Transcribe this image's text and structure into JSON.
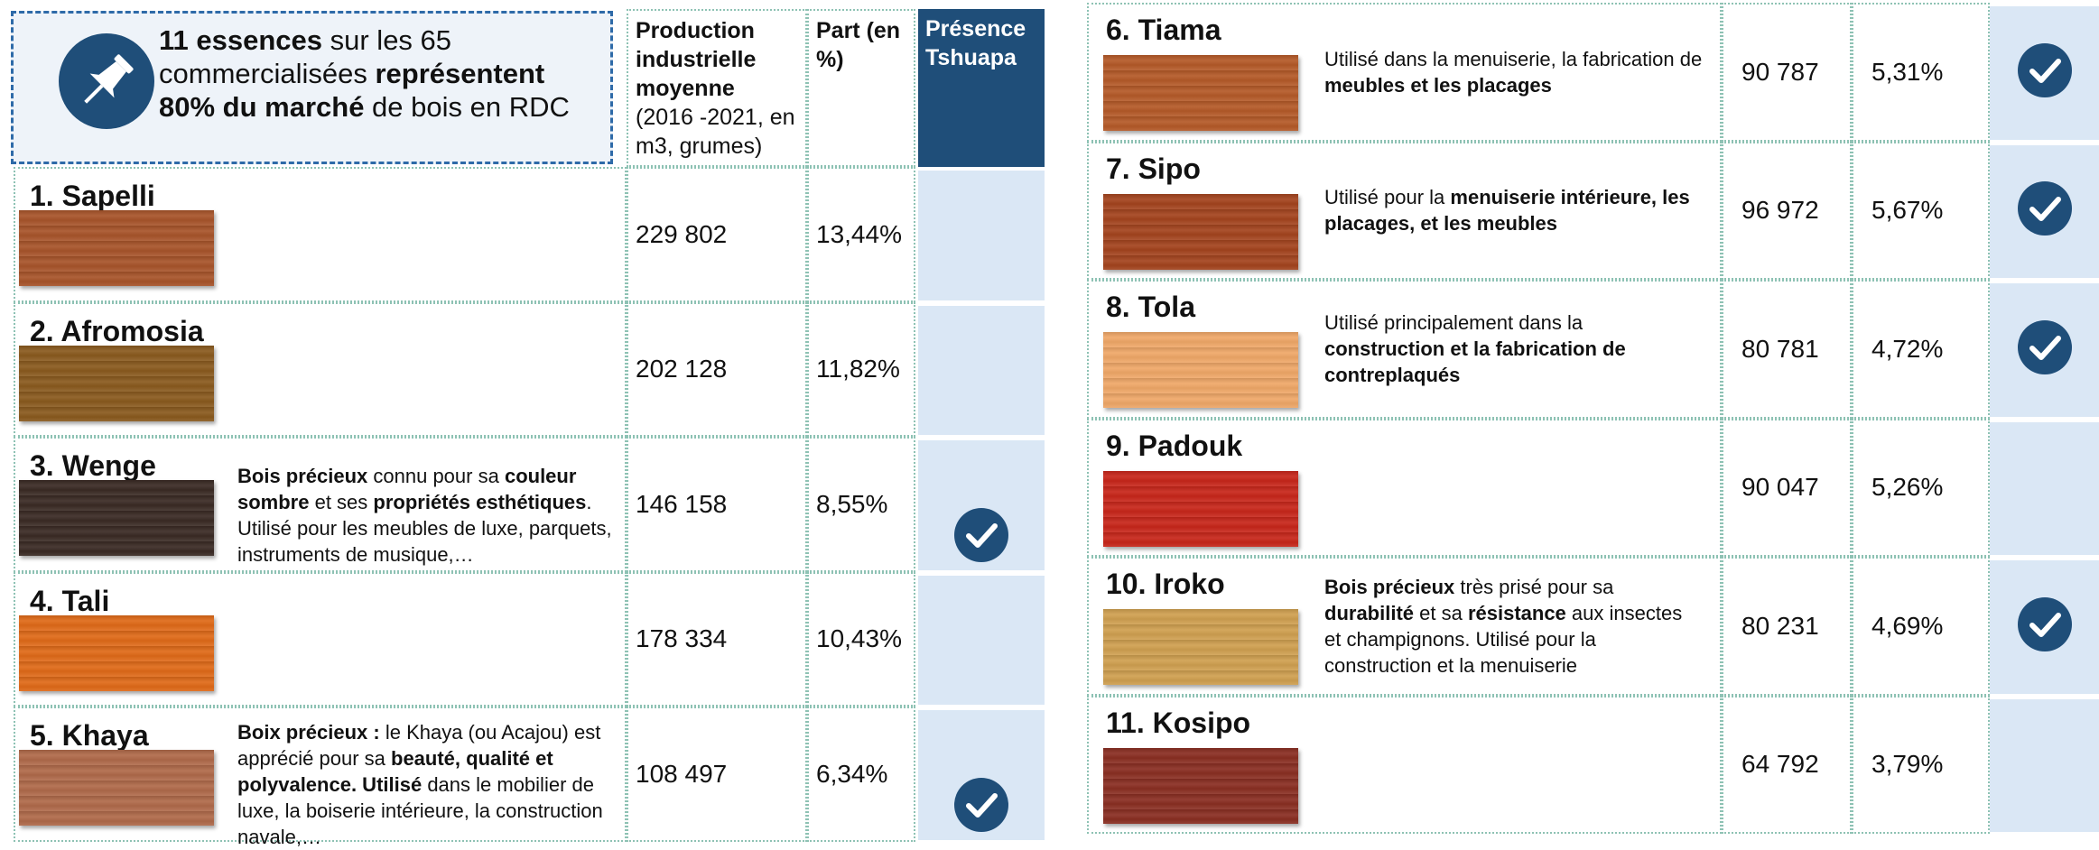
{
  "header": {
    "callout": [
      {
        "text": "11 essences",
        "bold": true
      },
      {
        "text": " sur les 65 commercialisées ",
        "bold": false
      },
      {
        "text": "représentent 80% du marché",
        "bold": true
      },
      {
        "text": " de bois en RDC",
        "bold": false
      }
    ],
    "production": [
      {
        "text": "Production industrielle moyenne",
        "bold": true
      },
      {
        "text": "(2016 -2021, en m3, grumes)",
        "bold": false
      }
    ],
    "share": [
      {
        "text": "Part (en %)",
        "bold": true
      }
    ],
    "presence": [
      {
        "text": "Présence Tshuapa",
        "bold": true
      }
    ]
  },
  "rows": [
    {
      "name": "1. Sapelli",
      "color": "#a8542a",
      "production": "229 802",
      "share": "13,44%",
      "presence": false,
      "description": []
    },
    {
      "name": "2. Afromosia",
      "color": "#8a5a1e",
      "production": "202 128",
      "share": "11,82%",
      "presence": false,
      "description": []
    },
    {
      "name": "3. Wenge",
      "color": "#3a2a24",
      "production": "146 158",
      "share": "8,55%",
      "presence": true,
      "description": [
        {
          "text": "Bois précieux",
          "bold": true
        },
        {
          "text": " connu pour sa ",
          "bold": false
        },
        {
          "text": "couleur sombre",
          "bold": true
        },
        {
          "text": " et ses ",
          "bold": false
        },
        {
          "text": "propriétés esthétiques",
          "bold": true
        },
        {
          "text": ". Utilisé pour les meubles de luxe, parquets, instruments de musique,…",
          "bold": false
        }
      ]
    },
    {
      "name": "4. Tali",
      "color": "#e06a18",
      "production": "178 334",
      "share": "10,43%",
      "presence": false,
      "description": []
    },
    {
      "name": "5. Khaya",
      "color": "#b06a4a",
      "production": "108 497",
      "share": "6,34%",
      "presence": true,
      "description": [
        {
          "text": "Boix précieux :",
          "bold": true
        },
        {
          "text": " le Khaya (ou Acajou) est apprécié pour sa ",
          "bold": false
        },
        {
          "text": "beauté, qualité et polyvalence. Utilisé",
          "bold": true
        },
        {
          "text": " dans le mobilier de luxe, la boiserie intérieure, la construction navale,…",
          "bold": false
        }
      ]
    },
    {
      "name": "6. Tiama",
      "color": "#b55a28",
      "production": "90 787",
      "share": "5,31%",
      "presence": true,
      "description": [
        {
          "text": "Utilisé dans la menuiserie, la fabrication de ",
          "bold": false
        },
        {
          "text": "meubles et les placages",
          "bold": true
        }
      ]
    },
    {
      "name": "7. Sipo",
      "color": "#a4441e",
      "production": "96 972",
      "share": "5,67%",
      "presence": true,
      "description": [
        {
          "text": "Utilisé pour la ",
          "bold": false
        },
        {
          "text": "menuiserie intérieure, les placages, et les meubles",
          "bold": true
        }
      ]
    },
    {
      "name": "8. Tola",
      "color": "#f0a868",
      "production": "80 781",
      "share": "4,72%",
      "presence": true,
      "description": [
        {
          "text": "Utilisé principalement dans la ",
          "bold": false
        },
        {
          "text": "construction et la fabrication de contreplaqués",
          "bold": true
        }
      ]
    },
    {
      "name": "9. Padouk",
      "color": "#c8261a",
      "production": "90 047",
      "share": "5,26%",
      "presence": false,
      "description": []
    },
    {
      "name": "10. Iroko",
      "color": "#d0a050",
      "production": "80 231",
      "share": "4,69%",
      "presence": true,
      "description": [
        {
          "text": "Bois précieux",
          "bold": true
        },
        {
          "text": " très prisé pour sa ",
          "bold": false
        },
        {
          "text": "durabilité",
          "bold": true
        },
        {
          "text": " et sa ",
          "bold": false
        },
        {
          "text": "résistance",
          "bold": true
        },
        {
          "text": " aux insectes et champignons. Utilisé pour la construction et la  menuiserie",
          "bold": false
        }
      ]
    },
    {
      "name": "11. Kosipo",
      "color": "#8a2e22",
      "production": "64 792",
      "share": "3,79%",
      "presence": false,
      "description": []
    }
  ]
}
